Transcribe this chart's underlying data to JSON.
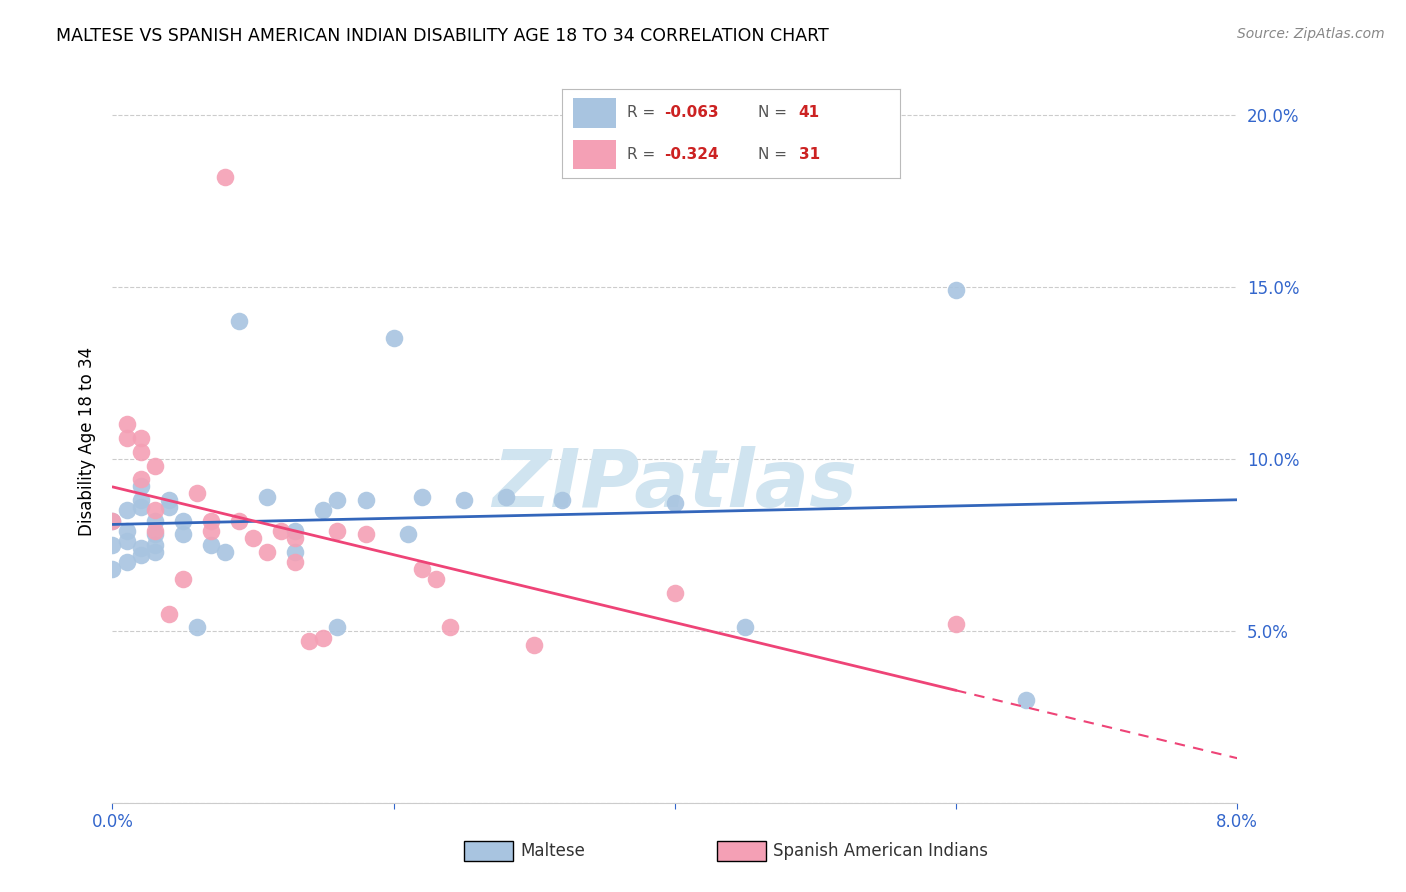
{
  "title": "MALTESE VS SPANISH AMERICAN INDIAN DISABILITY AGE 18 TO 34 CORRELATION CHART",
  "source": "Source: ZipAtlas.com",
  "ylabel": "Disability Age 18 to 34",
  "xlim": [
    0.0,
    0.08
  ],
  "ylim": [
    0.0,
    0.21
  ],
  "xticks": [
    0.0,
    0.02,
    0.04,
    0.06,
    0.08
  ],
  "xticklabels": [
    "0.0%",
    "",
    "",
    "",
    "8.0%"
  ],
  "yticks": [
    0.0,
    0.05,
    0.1,
    0.15,
    0.2
  ],
  "yticklabels": [
    "",
    "5.0%",
    "10.0%",
    "15.0%",
    "20.0%"
  ],
  "maltese_R": -0.063,
  "maltese_N": 41,
  "spanish_R": -0.324,
  "spanish_N": 31,
  "maltese_color": "#a8c4e0",
  "spanish_color": "#f4a0b5",
  "maltese_line_color": "#3366bb",
  "spanish_line_color": "#ee4477",
  "watermark_text": "ZIPatlas",
  "watermark_color": "#d0e4f0",
  "maltese_x": [
    0.0,
    0.0,
    0.0,
    0.001,
    0.001,
    0.001,
    0.001,
    0.002,
    0.002,
    0.002,
    0.002,
    0.002,
    0.003,
    0.003,
    0.003,
    0.003,
    0.004,
    0.004,
    0.005,
    0.005,
    0.006,
    0.007,
    0.008,
    0.009,
    0.011,
    0.013,
    0.013,
    0.015,
    0.016,
    0.016,
    0.018,
    0.02,
    0.021,
    0.022,
    0.025,
    0.028,
    0.032,
    0.04,
    0.045,
    0.06,
    0.065
  ],
  "maltese_y": [
    0.075,
    0.082,
    0.068,
    0.085,
    0.079,
    0.076,
    0.07,
    0.088,
    0.074,
    0.072,
    0.092,
    0.086,
    0.082,
    0.078,
    0.075,
    0.073,
    0.088,
    0.086,
    0.082,
    0.078,
    0.051,
    0.075,
    0.073,
    0.14,
    0.089,
    0.079,
    0.073,
    0.085,
    0.051,
    0.088,
    0.088,
    0.135,
    0.078,
    0.089,
    0.088,
    0.089,
    0.088,
    0.087,
    0.051,
    0.149,
    0.03
  ],
  "spanish_x": [
    0.0,
    0.001,
    0.001,
    0.002,
    0.002,
    0.002,
    0.003,
    0.003,
    0.003,
    0.004,
    0.005,
    0.006,
    0.007,
    0.007,
    0.008,
    0.009,
    0.01,
    0.011,
    0.012,
    0.013,
    0.013,
    0.014,
    0.015,
    0.016,
    0.018,
    0.022,
    0.023,
    0.024,
    0.03,
    0.04,
    0.06
  ],
  "spanish_y": [
    0.082,
    0.11,
    0.106,
    0.106,
    0.102,
    0.094,
    0.085,
    0.098,
    0.079,
    0.055,
    0.065,
    0.09,
    0.082,
    0.079,
    0.182,
    0.082,
    0.077,
    0.073,
    0.079,
    0.077,
    0.07,
    0.047,
    0.048,
    0.079,
    0.078,
    0.068,
    0.065,
    0.051,
    0.046,
    0.061,
    0.052
  ]
}
